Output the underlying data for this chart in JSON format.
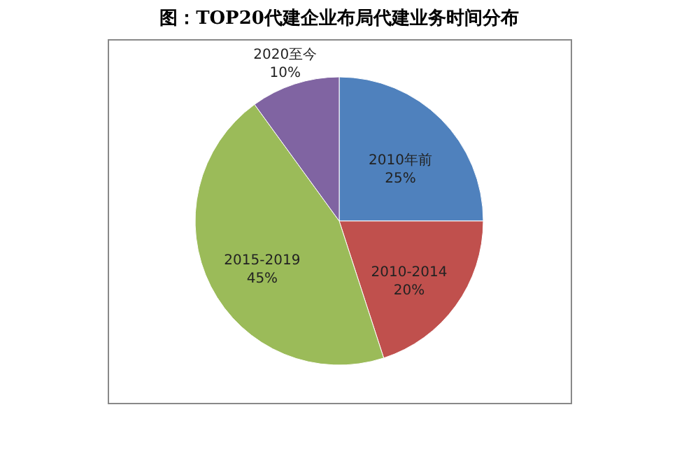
{
  "chart_data": {
    "type": "pie",
    "title": "图：TOP20代建企业布局代建业务时间分布",
    "categories": [
      "2010年前",
      "2010-2014",
      "2015-2019",
      "2020至今"
    ],
    "values": [
      25,
      20,
      45,
      10
    ],
    "value_labels": [
      "25%",
      "20%",
      "45%",
      "10%"
    ],
    "colors": [
      "#4f81bd",
      "#c0504d",
      "#9bbb59",
      "#8064a2"
    ],
    "legend": false
  }
}
